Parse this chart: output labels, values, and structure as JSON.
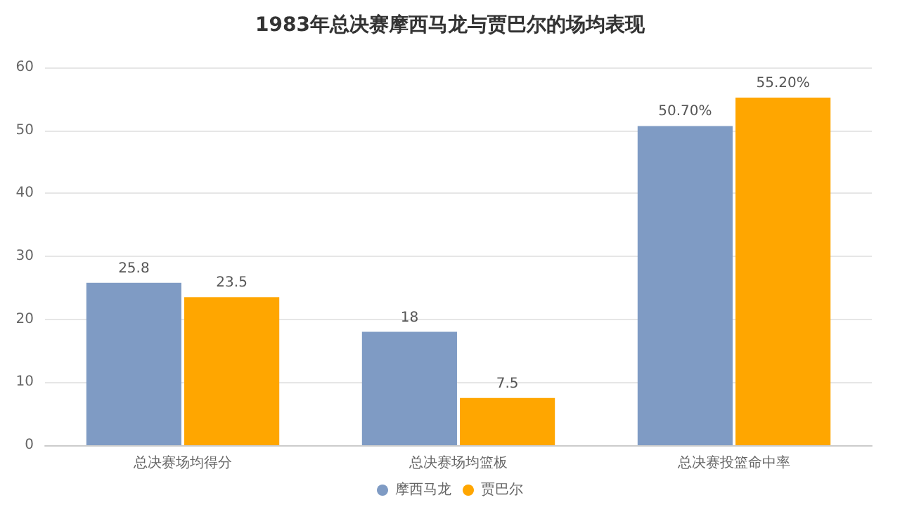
{
  "chart_data": {
    "type": "bar",
    "title": "1983年总决赛摩西马龙与贾巴尔的场均表现",
    "categories": [
      "总决赛场均得分",
      "总决赛场均篮板",
      "总决赛投篮命中率"
    ],
    "series": [
      {
        "name": "摩西马龙",
        "color": "#7f9bc4",
        "values": [
          25.8,
          18,
          50.7
        ],
        "value_labels": [
          "25.8",
          "18",
          "50.70%"
        ]
      },
      {
        "name": "贾巴尔",
        "color": "#ffa600",
        "values": [
          23.5,
          7.5,
          55.2
        ],
        "value_labels": [
          "23.5",
          "7.5",
          "55.20%"
        ]
      }
    ],
    "ylim": [
      0,
      60
    ],
    "yticks": [
      0,
      10,
      20,
      30,
      40,
      50,
      60
    ],
    "grid": "y",
    "legend": "bottom"
  }
}
